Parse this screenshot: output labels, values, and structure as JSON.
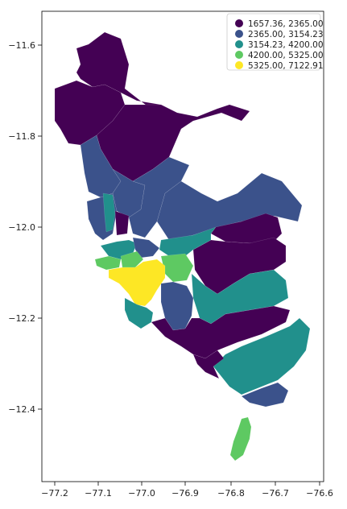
{
  "chart_data": {
    "type": "choropleth",
    "x_ticks": [
      "−77.2",
      "−77.1",
      "−77.0",
      "−76.9",
      "−76.8",
      "−76.7",
      "−76.6"
    ],
    "y_ticks": [
      "−11.6",
      "−11.8",
      "−12.0",
      "−12.2",
      "−12.4"
    ],
    "xlim": [
      -77.2,
      -76.6
    ],
    "ylim": [
      -12.52,
      -11.55
    ],
    "grid": false,
    "legend_position": "top-right",
    "legend": [
      {
        "label": "1657.36, 2365.00",
        "color": "#440154"
      },
      {
        "label": "2365.00, 3154.23",
        "color": "#3b528b"
      },
      {
        "label": "3154.23, 4200.00",
        "color": "#21908c"
      },
      {
        "label": "4200.00, 5325.00",
        "color": "#5ec962"
      },
      {
        "label": "5325.00, 7122.91",
        "color": "#fde725"
      }
    ]
  }
}
